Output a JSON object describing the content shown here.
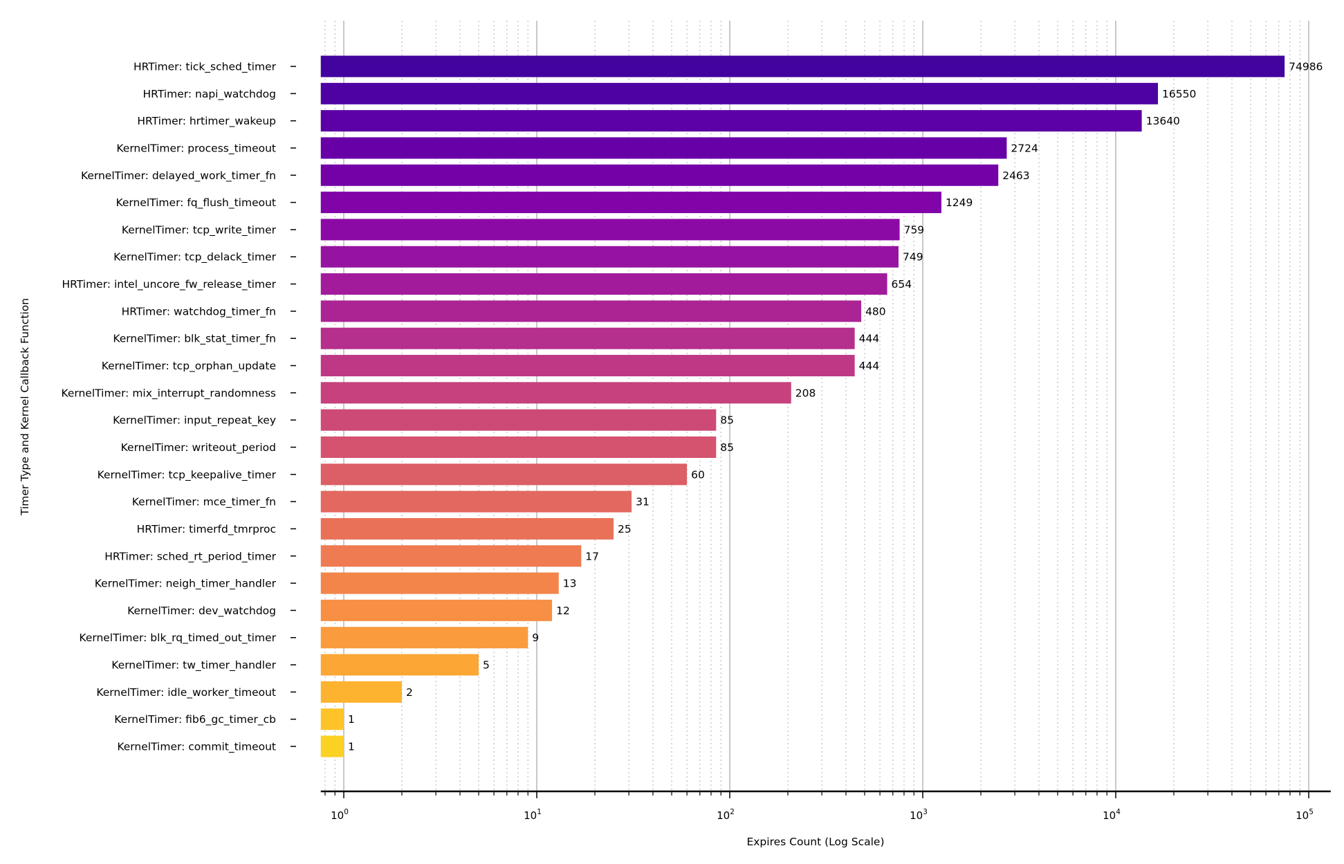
{
  "chart_data": {
    "type": "bar",
    "orientation": "horizontal",
    "x_scale": "log",
    "xlim": [
      0.76,
      130000
    ],
    "xlabel": "Expires Count (Log Scale)",
    "ylabel": "Timer Type and Kernel Callback Function",
    "grid": "vertical (major solid, minor dotted)",
    "colormap": "plasma",
    "x_ticks": [
      {
        "base": "10",
        "exp": "0",
        "value": 1
      },
      {
        "base": "10",
        "exp": "1",
        "value": 10
      },
      {
        "base": "10",
        "exp": "2",
        "value": 100
      },
      {
        "base": "10",
        "exp": "3",
        "value": 1000
      },
      {
        "base": "10",
        "exp": "4",
        "value": 10000
      },
      {
        "base": "10",
        "exp": "5",
        "value": 100000
      }
    ],
    "categories": [
      "HRTimer: tick_sched_timer",
      "HRTimer: napi_watchdog",
      "HRTimer: hrtimer_wakeup",
      "KernelTimer: process_timeout",
      "KernelTimer: delayed_work_timer_fn",
      "KernelTimer: fq_flush_timeout",
      "KernelTimer: tcp_write_timer",
      "KernelTimer: tcp_delack_timer",
      "HRTimer: intel_uncore_fw_release_timer",
      "HRTimer: watchdog_timer_fn",
      "KernelTimer: blk_stat_timer_fn",
      "KernelTimer: tcp_orphan_update",
      "KernelTimer: mix_interrupt_randomness",
      "KernelTimer: input_repeat_key",
      "KernelTimer: writeout_period",
      "KernelTimer: tcp_keepalive_timer",
      "KernelTimer: mce_timer_fn",
      "HRTimer: timerfd_tmrproc",
      "HRTimer: sched_rt_period_timer",
      "KernelTimer: neigh_timer_handler",
      "KernelTimer: dev_watchdog",
      "KernelTimer: blk_rq_timed_out_timer",
      "KernelTimer: tw_timer_handler",
      "KernelTimer: idle_worker_timeout",
      "KernelTimer: fib6_gc_timer_cb",
      "KernelTimer: commit_timeout"
    ],
    "values": [
      74986,
      16550,
      13640,
      2724,
      2463,
      1249,
      759,
      749,
      654,
      480,
      444,
      444,
      208,
      85,
      85,
      60,
      31,
      25,
      17,
      13,
      12,
      9,
      5,
      2,
      1,
      1
    ],
    "value_labels": [
      "74986",
      "16550",
      "13640",
      "2724",
      "2463",
      "1249",
      "759",
      "749",
      "654",
      "480",
      "444",
      "444",
      "208",
      "85",
      "85",
      "60",
      "31",
      "25",
      "17",
      "13",
      "12",
      "9",
      "5",
      "2",
      "1",
      "1"
    ],
    "colors": [
      "#43039e",
      "#4f02a2",
      "#5b01a5",
      "#6800a8",
      "#7401a8",
      "#8004a8",
      "#8b0aa5",
      "#9613a1",
      "#a11b9b",
      "#ab2494",
      "#b52f8c",
      "#be3885",
      "#c6417d",
      "#ce4a76",
      "#d5536f",
      "#dc5e66",
      "#e3685f",
      "#e97158",
      "#ee7b51",
      "#f3854b",
      "#f79044",
      "#fa9b3d",
      "#fca636",
      "#fdb32f",
      "#fdc328",
      "#fbd124"
    ]
  }
}
